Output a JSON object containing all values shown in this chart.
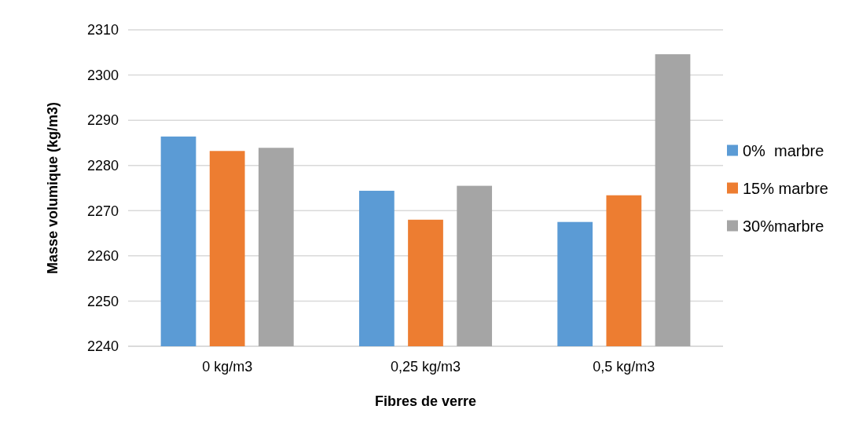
{
  "chart_data": {
    "type": "bar",
    "xlabel": "Fibres de verre",
    "ylabel": "Masse volumique (kg/m3)",
    "categories": [
      "0 kg/m3",
      "0,25 kg/m3",
      "0,5 kg/m3"
    ],
    "series": [
      {
        "name": "0%  marbre",
        "color": "#5b9bd5",
        "values": [
          2286.4,
          2274.4,
          2267.5
        ]
      },
      {
        "name": "15% marbre",
        "color": "#ed7d31",
        "values": [
          2283.2,
          2268.0,
          2273.4
        ]
      },
      {
        "name": "30%marbre",
        "color": "#a5a5a5",
        "values": [
          2283.9,
          2275.5,
          2304.6
        ]
      }
    ],
    "ylim": [
      2240,
      2310
    ],
    "yticks": [
      2240,
      2250,
      2260,
      2270,
      2280,
      2290,
      2300,
      2310
    ],
    "grid": "y",
    "legend": "right"
  }
}
